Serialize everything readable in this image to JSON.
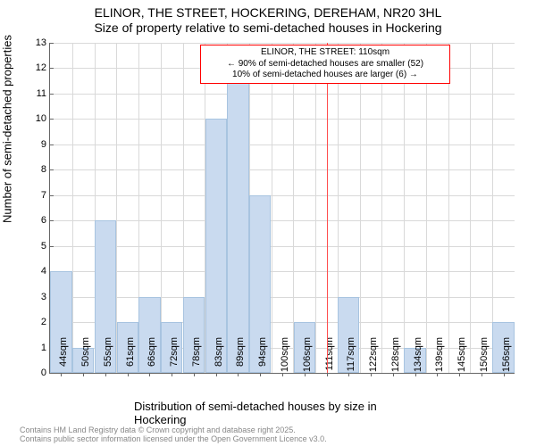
{
  "chart": {
    "type": "histogram",
    "title_line1": "ELINOR, THE STREET, HOCKERING, DEREHAM, NR20 3HL",
    "title_line2": "Size of property relative to semi-detached houses in Hockering",
    "title_fontsize": 14,
    "ylabel": "Number of semi-detached properties",
    "xlabel": "Distribution of semi-detached houses by size in Hockering",
    "label_fontsize": 13,
    "ylim": [
      0,
      13
    ],
    "ytick_step": 1,
    "x_categories": [
      "44sqm",
      "50sqm",
      "55sqm",
      "61sqm",
      "66sqm",
      "72sqm",
      "78sqm",
      "83sqm",
      "89sqm",
      "94sqm",
      "100sqm",
      "106sqm",
      "111sqm",
      "117sqm",
      "122sqm",
      "128sqm",
      "134sqm",
      "139sqm",
      "145sqm",
      "150sqm",
      "156sqm"
    ],
    "values": [
      4,
      1,
      6,
      2,
      3,
      2,
      3,
      10,
      12,
      7,
      0,
      2,
      0,
      3,
      0,
      0,
      1,
      0,
      0,
      0,
      2
    ],
    "bar_color": "#c9daef",
    "bar_border_color": "#a8c4e0",
    "background_color": "#ffffff",
    "grid_color": "#d9d9d9",
    "axis_color": "#666666",
    "tick_fontsize": 11,
    "reference_line": {
      "x_position": 111,
      "color": "#ff4d4d"
    },
    "annotation": {
      "line1": "ELINOR, THE STREET: 110sqm",
      "line2": "← 90% of semi-detached houses are smaller (52)",
      "line3": "10% of semi-detached houses are larger (6) →",
      "border_color": "#ff0000",
      "fontsize": 10
    },
    "footer_line1": "Contains HM Land Registry data © Crown copyright and database right 2025.",
    "footer_line2": "Contains public sector information licensed under the Open Government Licence v3.0.",
    "footer_color": "#888888",
    "footer_fontsize": 9
  }
}
